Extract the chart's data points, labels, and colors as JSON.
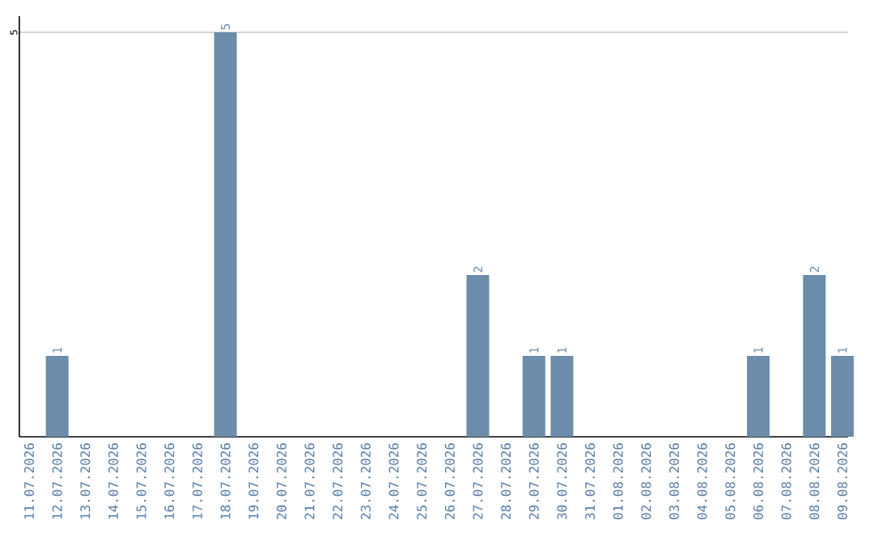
{
  "chart_data": {
    "type": "bar",
    "categories": [
      "11.07.2026",
      "12.07.2026",
      "13.07.2026",
      "14.07.2026",
      "15.07.2026",
      "16.07.2026",
      "17.07.2026",
      "18.07.2026",
      "19.07.2026",
      "20.07.2026",
      "21.07.2026",
      "22.07.2026",
      "23.07.2026",
      "24.07.2026",
      "25.07.2026",
      "26.07.2026",
      "27.07.2026",
      "28.07.2026",
      "29.07.2026",
      "30.07.2026",
      "31.07.2026",
      "01.08.2026",
      "02.08.2026",
      "03.08.2026",
      "04.08.2026",
      "05.08.2026",
      "06.08.2026",
      "07.08.2026",
      "08.08.2026",
      "09.08.2026"
    ],
    "values": [
      0,
      1,
      0,
      0,
      0,
      0,
      0,
      5,
      0,
      0,
      0,
      0,
      0,
      0,
      0,
      0,
      2,
      0,
      1,
      1,
      0,
      0,
      0,
      0,
      0,
      0,
      1,
      0,
      2,
      1
    ],
    "value_labels": [
      null,
      "1",
      null,
      null,
      null,
      null,
      null,
      "5",
      null,
      null,
      null,
      null,
      null,
      null,
      null,
      null,
      "2",
      null,
      "1",
      "1",
      null,
      null,
      null,
      null,
      null,
      null,
      "1",
      null,
      "2",
      "1"
    ],
    "color": "#6b8cab",
    "ylim": [
      0,
      5.2
    ],
    "yticks": [
      5
    ],
    "grid": "y"
  }
}
